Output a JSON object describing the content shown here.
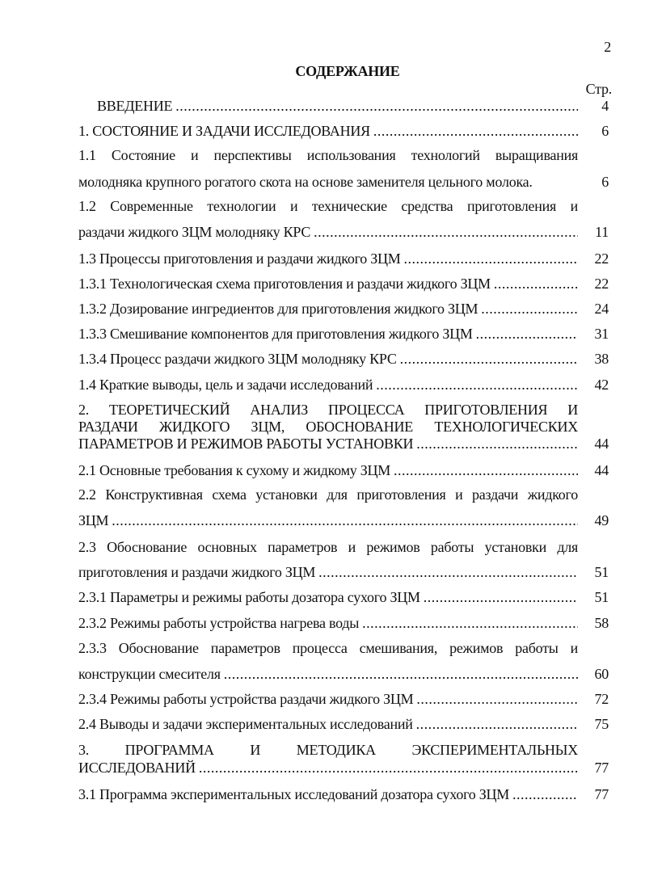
{
  "page_number": "2",
  "title": "СОДЕРЖАНИЕ",
  "page_column_label": "Стр.",
  "entries": [
    {
      "lines": [
        "ВВЕДЕНИЕ"
      ],
      "page": "4",
      "indent": true
    },
    {
      "lines": [
        "1. СОСТОЯНИЕ И ЗАДАЧИ ИССЛЕДОВАНИЯ"
      ],
      "page": "6"
    },
    {
      "lines": [
        "1.1 Состояние и перспективы использования технологий выращивания",
        "молодняка крупного рогатого скота на основе заменителя цельного молока."
      ],
      "page": "6",
      "no_leader": true
    },
    {
      "lines": [
        "1.2 Современные технологии и технические средства приготовления и",
        "раздачи жидкого ЗЦМ молодняку КРС"
      ],
      "page": "11"
    },
    {
      "lines": [
        "1.3 Процессы приготовления и раздачи жидкого ЗЦМ"
      ],
      "page": "22"
    },
    {
      "lines": [
        "1.3.1 Технологическая схема приготовления и раздачи жидкого ЗЦМ"
      ],
      "page": "22"
    },
    {
      "lines": [
        "1.3.2 Дозирование ингредиентов для приготовления жидкого ЗЦМ"
      ],
      "page": "24"
    },
    {
      "lines": [
        "1.3.3 Смешивание компонентов для приготовления жидкого ЗЦМ"
      ],
      "page": "31"
    },
    {
      "lines": [
        "1.3.4 Процесс раздачи жидкого ЗЦМ молодняку КРС"
      ],
      "page": "38"
    },
    {
      "lines": [
        "1.4 Краткие выводы, цель и задачи исследований"
      ],
      "page": "42"
    },
    {
      "lines": [
        "2. ТЕОРЕТИЧЕСКИЙ АНАЛИЗ ПРОЦЕССА ПРИГОТОВЛЕНИЯ И",
        "РАЗДАЧИ ЖИДКОГО ЗЦМ, ОБОСНОВАНИЕ ТЕХНОЛОГИЧЕСКИХ",
        "ПАРАМЕТРОВ И РЕЖИМОВ РАБОТЫ УСТАНОВКИ"
      ],
      "page": "44"
    },
    {
      "lines": [
        "2.1 Основные требования к сухому и жидкому ЗЦМ"
      ],
      "page": "44"
    },
    {
      "lines": [
        "2.2 Конструктивная схема установки для приготовления и раздачи жидкого",
        "ЗЦМ"
      ],
      "page": "49"
    },
    {
      "lines": [
        "2.3 Обоснование основных параметров и режимов работы установки для",
        "приготовления и раздачи жидкого ЗЦМ"
      ],
      "page": "51"
    },
    {
      "lines": [
        "2.3.1 Параметры и режимы работы дозатора сухого ЗЦМ"
      ],
      "page": "51"
    },
    {
      "lines": [
        "2.3.2 Режимы работы устройства нагрева воды"
      ],
      "page": "58"
    },
    {
      "lines": [
        "2.3.3 Обоснование параметров процесса смешивания, режимов работы и",
        "конструкции смесителя"
      ],
      "page": "60"
    },
    {
      "lines": [
        "2.3.4 Режимы работы устройства раздачи жидкого ЗЦМ"
      ],
      "page": "72"
    },
    {
      "lines": [
        "2.4 Выводы и задачи экспериментальных исследований"
      ],
      "page": "75"
    },
    {
      "lines": [
        "3. ПРОГРАММА И МЕТОДИКА ЭКСПЕРИМЕНТАЛЬНЫХ",
        "ИССЛЕДОВАНИЙ"
      ],
      "page": "77"
    },
    {
      "lines": [
        "3.1 Программа экспериментальных исследований дозатора сухого ЗЦМ"
      ],
      "page": "77"
    }
  ]
}
